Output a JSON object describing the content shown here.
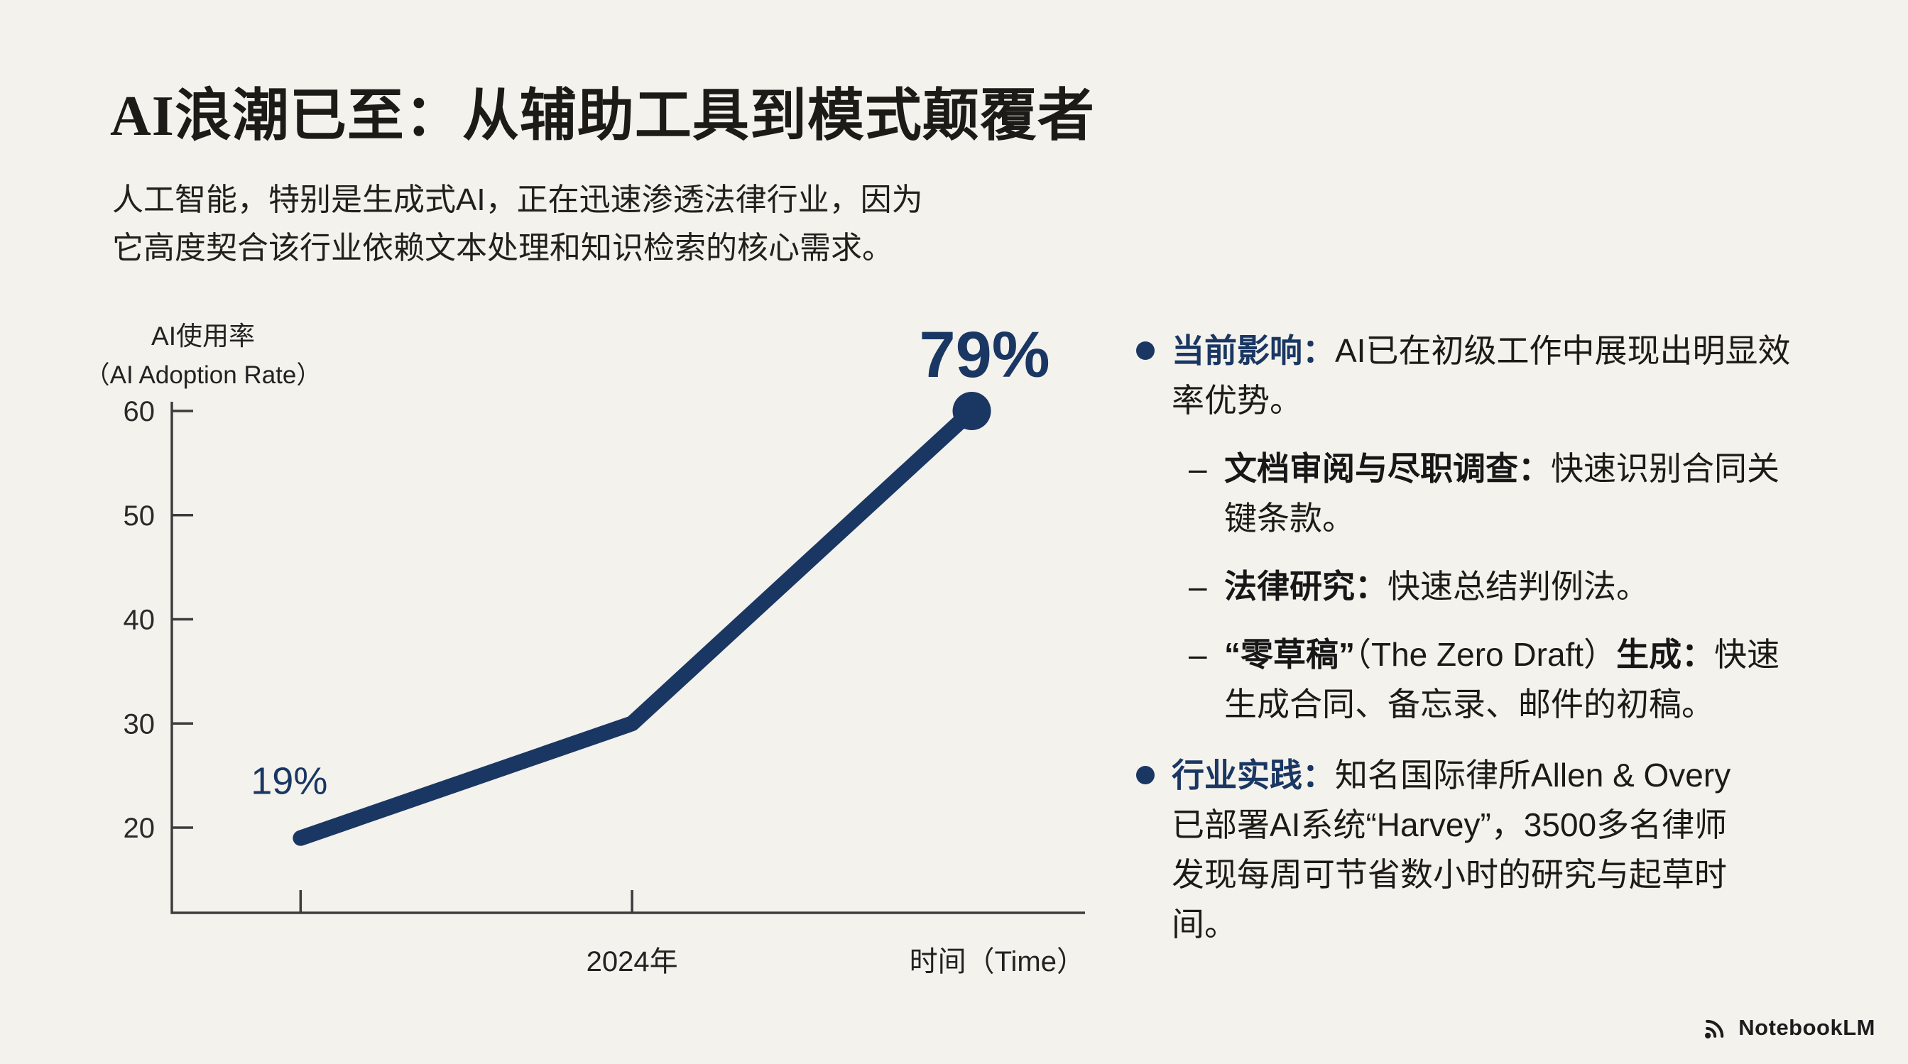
{
  "slide": {
    "title": "AI浪潮已至：从辅助工具到模式颠覆者",
    "subtitle": "人工智能，特别是生成式AI，正在迅速渗透法律行业，因为它高度契合该行业依赖文本处理和知识检索的核心需求。",
    "colors": {
      "background": "#f4f2ec",
      "accent_navy": "#1a3763",
      "text": "#1d1b17",
      "axis_gray": "#3c3c3c"
    }
  },
  "chart_data": {
    "type": "line",
    "ylabel_line1": "AI使用率",
    "ylabel_line2": "（AI Adoption Rate）",
    "xlabel": "时间（Time）",
    "x_tick_label": "2024年",
    "yticks": [
      20,
      30,
      40,
      50,
      60
    ],
    "ylim": [
      12,
      62
    ],
    "grid": false,
    "axis_color": "#3c3c3c",
    "line_color": "#1a3763",
    "series": [
      {
        "name": "AI使用率（AI Adoption Rate）",
        "x": [
          "",
          "2024年",
          ""
        ],
        "values": [
          19,
          30,
          79
        ]
      }
    ],
    "point_labels": [
      "19%",
      "",
      "79%"
    ]
  },
  "bullets": [
    {
      "lead": "当前影响：",
      "text": "AI已在初级工作中展现出明显效率优势。",
      "subs": [
        {
          "dash": "–",
          "lead": "文档审阅与尽职调查：",
          "text": "快速识别合同关键条款。"
        },
        {
          "dash": "–",
          "lead": "法律研究：",
          "text": "快速总结判例法。"
        },
        {
          "dash": "–",
          "segments": [
            {
              "t": "“零草稿”",
              "bold": true
            },
            {
              "t": "（The Zero Draft）",
              "bold": false
            },
            {
              "t": "生成：",
              "bold": true
            },
            {
              "t": "快速生成合同、备忘录、邮件的初稿。",
              "bold": false
            }
          ]
        }
      ]
    },
    {
      "lead": "行业实践：",
      "text": "知名国际律所Allen & Overy已部署AI系统“Harvey”，3500多名律师发现每周可节省数小时的研究与起草时间。"
    }
  ],
  "footer": {
    "logo_text": "NotebookLM"
  }
}
